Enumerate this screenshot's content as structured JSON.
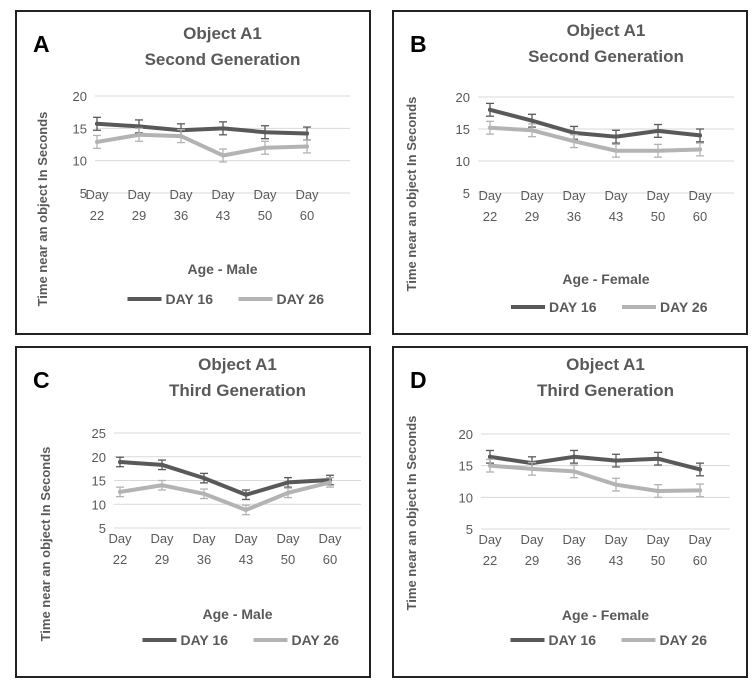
{
  "figure": {
    "background": "#ffffff",
    "border_color": "#222222"
  },
  "chart_data": [
    {
      "type": "line",
      "panel_letter": "A",
      "title": [
        "Object A1",
        "Second Generation"
      ],
      "xlabel": "Age - Male",
      "ylabel": "Time near an object  In Seconds",
      "categories": [
        [
          "Day",
          "22"
        ],
        [
          "Day",
          "29"
        ],
        [
          "Day",
          "36"
        ],
        [
          "Day",
          "43"
        ],
        [
          "Day",
          "50"
        ],
        [
          "Day",
          "60"
        ]
      ],
      "yticks": [
        5,
        10,
        15,
        20
      ],
      "ylim": [
        5,
        20
      ],
      "grid": true,
      "legend": "bottom",
      "series": [
        {
          "name": "DAY 16",
          "color": "#595959",
          "values": [
            15.7,
            15.3,
            14.7,
            15.0,
            14.4,
            14.2
          ],
          "errors": [
            1.0,
            1.0,
            1.0,
            1.0,
            1.0,
            1.0
          ]
        },
        {
          "name": "DAY 26",
          "color": "#b3b3b3",
          "values": [
            12.9,
            14.0,
            13.8,
            10.8,
            12.0,
            12.2
          ],
          "errors": [
            1.0,
            1.0,
            1.0,
            1.0,
            1.0,
            1.0
          ]
        }
      ]
    },
    {
      "type": "line",
      "panel_letter": "B",
      "title": [
        "Object A1",
        "Second Generation"
      ],
      "xlabel": "Age - Female",
      "ylabel": "Time near an object  In Seconds",
      "categories": [
        [
          "Day",
          "22"
        ],
        [
          "Day",
          "29"
        ],
        [
          "Day",
          "36"
        ],
        [
          "Day",
          "43"
        ],
        [
          "Day",
          "50"
        ],
        [
          "Day",
          "60"
        ]
      ],
      "yticks": [
        5,
        10,
        15,
        20
      ],
      "ylim": [
        5,
        20
      ],
      "grid": true,
      "legend": "bottom",
      "series": [
        {
          "name": "DAY 16",
          "color": "#595959",
          "values": [
            18.0,
            16.3,
            14.4,
            13.8,
            14.7,
            14.0
          ],
          "errors": [
            1.0,
            1.0,
            1.0,
            1.0,
            1.0,
            1.0
          ]
        },
        {
          "name": "DAY 26",
          "color": "#b3b3b3",
          "values": [
            15.2,
            14.8,
            13.1,
            11.6,
            11.6,
            11.8
          ],
          "errors": [
            1.0,
            1.0,
            1.0,
            1.0,
            1.0,
            1.0
          ]
        }
      ]
    },
    {
      "type": "line",
      "panel_letter": "C",
      "title": [
        "Object A1",
        "Third Generation"
      ],
      "xlabel": "Age - Male",
      "ylabel": "Time near an object  In Seconds",
      "categories": [
        [
          "Day",
          "22"
        ],
        [
          "Day",
          "29"
        ],
        [
          "Day",
          "36"
        ],
        [
          "Day",
          "43"
        ],
        [
          "Day",
          "50"
        ],
        [
          "Day",
          "60"
        ]
      ],
      "yticks": [
        5,
        10,
        15,
        20,
        25
      ],
      "ylim": [
        5,
        25
      ],
      "grid": true,
      "legend": "bottom",
      "series": [
        {
          "name": "DAY 16",
          "color": "#595959",
          "values": [
            18.9,
            18.3,
            15.5,
            12.0,
            14.6,
            15.1
          ],
          "errors": [
            1.0,
            1.0,
            1.0,
            1.0,
            1.0,
            1.0
          ]
        },
        {
          "name": "DAY 26",
          "color": "#b3b3b3",
          "values": [
            12.6,
            14.0,
            12.2,
            8.8,
            12.4,
            14.6
          ],
          "errors": [
            1.0,
            1.0,
            1.0,
            1.0,
            1.0,
            1.0
          ]
        }
      ]
    },
    {
      "type": "line",
      "panel_letter": "D",
      "title": [
        "Object A1",
        "Third Generation"
      ],
      "xlabel": "Age - Female",
      "ylabel": "Time near an object  In Seconds",
      "categories": [
        [
          "Day",
          "22"
        ],
        [
          "Day",
          "29"
        ],
        [
          "Day",
          "36"
        ],
        [
          "Day",
          "43"
        ],
        [
          "Day",
          "50"
        ],
        [
          "Day",
          "60"
        ]
      ],
      "yticks": [
        5,
        10,
        15,
        20
      ],
      "ylim": [
        5,
        20
      ],
      "grid": true,
      "legend": "bottom",
      "series": [
        {
          "name": "DAY 16",
          "color": "#595959",
          "values": [
            16.4,
            15.4,
            16.4,
            15.8,
            16.1,
            14.4
          ],
          "errors": [
            1.0,
            1.0,
            1.0,
            1.0,
            1.0,
            1.0
          ]
        },
        {
          "name": "DAY 26",
          "color": "#b3b3b3",
          "values": [
            15.0,
            14.5,
            14.1,
            12.0,
            11.0,
            11.1
          ],
          "errors": [
            1.0,
            1.0,
            1.0,
            1.0,
            1.0,
            1.0
          ]
        }
      ]
    }
  ]
}
